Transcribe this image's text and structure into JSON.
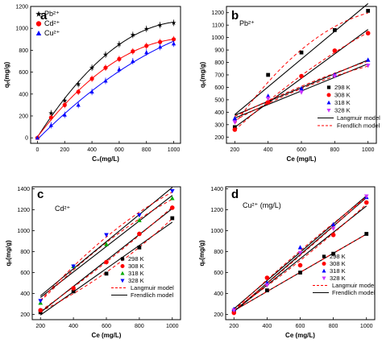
{
  "chart_data": [
    {
      "panel": "a",
      "type": "line",
      "xlabel": "C₀(mg/L)",
      "ylabel": "qₑ(mg/g)",
      "xlim": [
        -50,
        1050
      ],
      "ylim": [
        -50,
        1200
      ],
      "xticks": [
        0,
        200,
        400,
        600,
        800,
        1000
      ],
      "yticks": [
        0,
        200,
        400,
        600,
        800,
        1000,
        1200
      ],
      "grid": false,
      "legend_position": "top-left",
      "series": [
        {
          "name": "Pb²⁺",
          "color": "#000000",
          "marker": "star",
          "x": [
            0,
            100,
            200,
            300,
            400,
            500,
            600,
            700,
            800,
            900,
            1000
          ],
          "y": [
            0,
            225,
            340,
            490,
            640,
            760,
            855,
            940,
            995,
            1030,
            1050
          ]
        },
        {
          "name": "Cd²⁺",
          "color": "#ff0000",
          "marker": "circle",
          "x": [
            0,
            100,
            200,
            300,
            400,
            500,
            600,
            700,
            800,
            900,
            1000
          ],
          "y": [
            0,
            185,
            300,
            420,
            540,
            640,
            720,
            790,
            840,
            875,
            900
          ]
        },
        {
          "name": "Cu²⁺",
          "color": "#0000ff",
          "marker": "triangle",
          "x": [
            0,
            100,
            200,
            300,
            400,
            500,
            600,
            700,
            800,
            900,
            1000
          ],
          "y": [
            0,
            115,
            210,
            300,
            420,
            520,
            625,
            700,
            780,
            830,
            860
          ]
        }
      ]
    },
    {
      "panel": "b",
      "type": "scatter",
      "ion_label": "Pb²⁺",
      "xlabel": "Ce (mg/L)",
      "ylabel": "qₑ(mg/g)",
      "xlim": [
        150,
        1050
      ],
      "ylim": [
        150,
        1250
      ],
      "xticks": [
        200,
        400,
        600,
        800,
        1000
      ],
      "yticks": [
        200,
        300,
        400,
        500,
        600,
        700,
        800,
        900,
        1000,
        1100,
        1200
      ],
      "grid": false,
      "legend_position": "bottom-right",
      "series": [
        {
          "name": "298 K",
          "color": "#000000",
          "marker": "square",
          "x": [
            200,
            400,
            600,
            800,
            1000
          ],
          "y": [
            280,
            700,
            880,
            1060,
            1215
          ]
        },
        {
          "name": "308 K",
          "color": "#ff0000",
          "marker": "circle",
          "x": [
            200,
            400,
            600,
            800,
            1000
          ],
          "y": [
            260,
            480,
            690,
            895,
            1035
          ]
        },
        {
          "name": "318 K",
          "color": "#0000ff",
          "marker": "triangle",
          "x": [
            200,
            400,
            600,
            800,
            1000
          ],
          "y": [
            350,
            530,
            590,
            700,
            820
          ]
        },
        {
          "name": "328 K",
          "color": "#cc33ff",
          "marker": "triangle-down",
          "x": [
            200,
            400,
            600,
            800,
            1000
          ],
          "y": [
            320,
            510,
            560,
            690,
            775
          ]
        },
        {
          "name": "Langmuir model",
          "color": "#000000",
          "style": "solid",
          "fit": true
        },
        {
          "name": "Frendlich model",
          "color": "#ff0000",
          "style": "dashed",
          "fit": true
        }
      ]
    },
    {
      "panel": "c",
      "type": "scatter",
      "ion_label": "Cd²⁺",
      "xlabel": "Ce (mg/L)",
      "ylabel": "qₑ(mg/g)",
      "xlim": [
        150,
        1050
      ],
      "ylim": [
        150,
        1420
      ],
      "xticks": [
        200,
        400,
        600,
        800,
        1000
      ],
      "yticks": [
        200,
        400,
        600,
        800,
        1000,
        1200,
        1400
      ],
      "grid": false,
      "legend_position": "bottom-right",
      "series": [
        {
          "name": "298 K",
          "color": "#000000",
          "marker": "square",
          "x": [
            200,
            400,
            600,
            800,
            1000
          ],
          "y": [
            220,
            420,
            590,
            840,
            1120
          ]
        },
        {
          "name": "308 K",
          "color": "#ff0000",
          "marker": "circle",
          "x": [
            200,
            400,
            600,
            800,
            1000
          ],
          "y": [
            240,
            450,
            700,
            970,
            1220
          ]
        },
        {
          "name": "318 K",
          "color": "#00aa00",
          "marker": "triangle",
          "x": [
            200,
            400,
            600,
            800,
            1000
          ],
          "y": [
            310,
            660,
            870,
            1100,
            1310
          ]
        },
        {
          "name": "328 K",
          "color": "#0000ff",
          "marker": "triangle-down",
          "x": [
            200,
            400,
            600,
            800,
            1000
          ],
          "y": [
            330,
            660,
            960,
            1150,
            1380
          ]
        },
        {
          "name": "Langmuir model",
          "color": "#ff0000",
          "style": "dashed",
          "fit": true
        },
        {
          "name": "Frendlich model",
          "color": "#000000",
          "style": "solid",
          "fit": true
        }
      ]
    },
    {
      "panel": "d",
      "type": "scatter",
      "ion_label": "Cu²⁺ (mg/L)",
      "xlabel": "Ce (mg/L)",
      "ylabel": "qₑ(mg/g)",
      "xlim": [
        150,
        1050
      ],
      "ylim": [
        150,
        1420
      ],
      "xticks": [
        200,
        400,
        600,
        800,
        1000
      ],
      "yticks": [
        200,
        400,
        600,
        800,
        1000,
        1200,
        1400
      ],
      "grid": false,
      "legend_position": "bottom-right",
      "series": [
        {
          "name": "298 K",
          "color": "#000000",
          "marker": "square",
          "x": [
            200,
            400,
            600,
            800,
            1000
          ],
          "y": [
            230,
            430,
            600,
            780,
            970
          ]
        },
        {
          "name": "308 K",
          "color": "#ff0000",
          "marker": "circle",
          "x": [
            200,
            400,
            600,
            800,
            1000
          ],
          "y": [
            215,
            550,
            670,
            960,
            1270
          ]
        },
        {
          "name": "318 K",
          "color": "#0000ff",
          "marker": "triangle",
          "x": [
            200,
            400,
            600,
            800,
            1000
          ],
          "y": [
            250,
            500,
            840,
            1060,
            1320
          ]
        },
        {
          "name": "328 K",
          "color": "#cc33ff",
          "marker": "triangle-down",
          "x": [
            200,
            400,
            600,
            800,
            1000
          ],
          "y": [
            240,
            480,
            790,
            1020,
            1330
          ]
        },
        {
          "name": "Langmuir model",
          "color": "#ff0000",
          "style": "dashed",
          "fit": true
        },
        {
          "name": "Frendlich model",
          "color": "#000000",
          "style": "solid",
          "fit": true
        }
      ]
    }
  ]
}
